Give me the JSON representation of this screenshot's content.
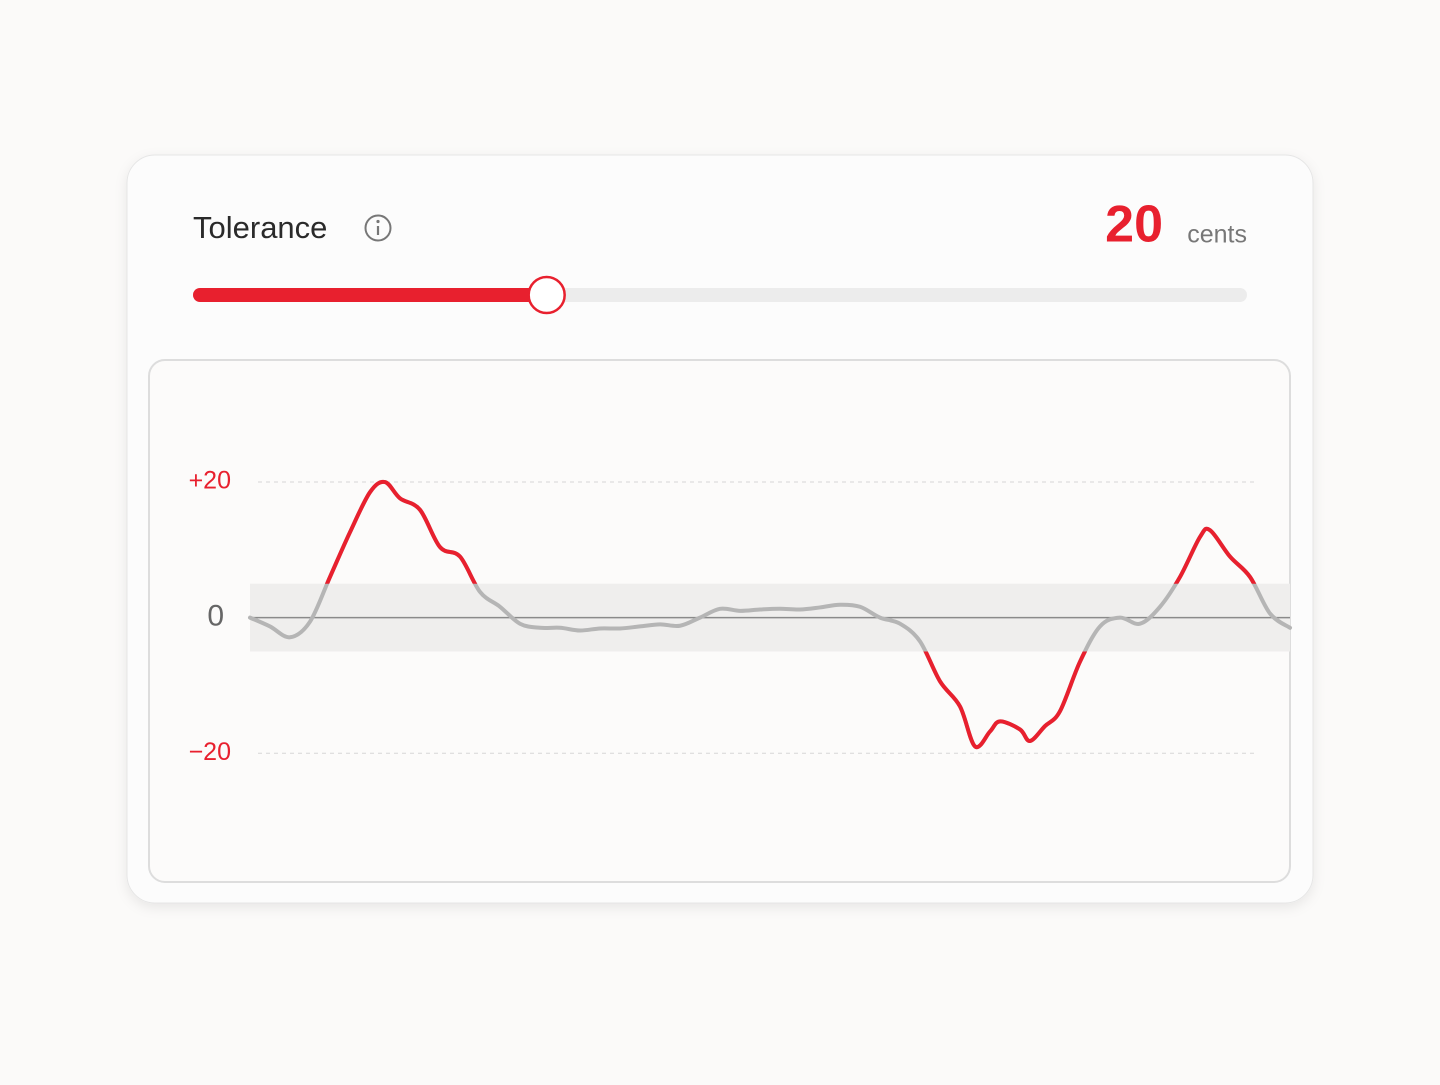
{
  "header": {
    "label": "Tolerance",
    "value": 20,
    "unit": "cents"
  },
  "slider": {
    "min": 0,
    "max": 60,
    "color": "#e8202e"
  },
  "chart_data": {
    "type": "line",
    "x": [
      0,
      20,
      40,
      60,
      80,
      100,
      120,
      135,
      150,
      170,
      190,
      210,
      230,
      250,
      270,
      290,
      310,
      330,
      350,
      370,
      390,
      410,
      430,
      450,
      470,
      490,
      510,
      530,
      550,
      570,
      590,
      610,
      630,
      650,
      670,
      690,
      710,
      725,
      740,
      750,
      770,
      780,
      795,
      810,
      830,
      850,
      870,
      890,
      910,
      930,
      950,
      960,
      980,
      1000,
      1020,
      1040
    ],
    "series": [
      {
        "color": "#e8202e",
        "values": [
          0,
          -1.3,
          -2.9,
          -0.6,
          6,
          12.6,
          18.5,
          20,
          17.6,
          15.9,
          10.4,
          9,
          3.8,
          1.6,
          -0.9,
          -1.5,
          -1.5,
          -1.9,
          -1.6,
          -1.6,
          -1.3,
          -1,
          -1.2,
          0,
          1.3,
          1,
          1.2,
          1.3,
          1.2,
          1.5,
          1.9,
          1.6,
          0,
          -0.9,
          -3.5,
          -9.4,
          -13.1,
          -19,
          -16.8,
          -15.3,
          -16.5,
          -18.2,
          -16,
          -13.8,
          -6.5,
          -1.3,
          0,
          -0.9,
          1.6,
          6,
          11.9,
          12.9,
          9,
          6,
          0.6,
          -1.5
        ]
      }
    ],
    "xlim": [
      0,
      1040
    ],
    "ylim": [
      -39,
      38
    ],
    "yticks": [
      {
        "value": 20,
        "label": "+20"
      },
      0,
      {
        "value": -20,
        "label": "−20"
      }
    ],
    "tolerance_band": [
      -5,
      5
    ]
  }
}
